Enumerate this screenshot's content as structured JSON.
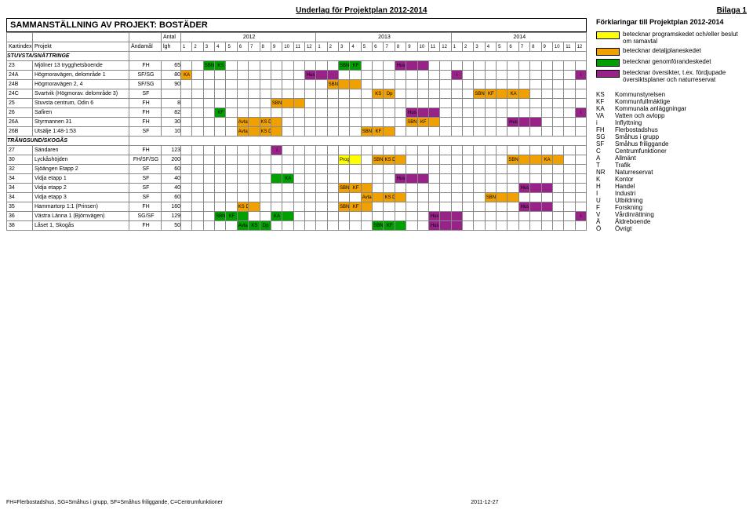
{
  "header": {
    "title_center": "Underlag för Projektplan 2012-2014",
    "title_right": "Bilaga 1"
  },
  "table": {
    "title": "SAMMANSTÄLLNING AV PROJEKT: BOSTÄDER",
    "antal_label": "Antal",
    "years": [
      "2012",
      "2013",
      "2014"
    ],
    "col_headers": [
      "Kartindex",
      "Projekt",
      "Ändamål",
      "lgh"
    ],
    "months": [
      "1",
      "2",
      "3",
      "4",
      "5",
      "6",
      "7",
      "8",
      "9",
      "10",
      "11",
      "12"
    ],
    "sections": [
      {
        "name": "STUVSTA/SNÄTTRINGE"
      },
      {
        "name": "TRÅNGSUND/SKOGÅS"
      }
    ],
    "rows": [
      {
        "s": 0,
        "idx": "23",
        "proj": "Mjölner 13 trygghetsboende",
        "and": "FH",
        "lgh": "65",
        "bars": [
          {
            "from": 2,
            "to": 4,
            "color": "#00a000",
            "labels": [
              "SBN",
              "KS"
            ]
          },
          {
            "from": 14,
            "to": 16,
            "color": "#00a000",
            "labels": [
              "SBN",
              "KF"
            ]
          },
          {
            "from": 19,
            "to": 22,
            "color": "#992288",
            "labels": [
              "Hus"
            ]
          }
        ]
      },
      {
        "s": 0,
        "idx": "24A",
        "proj": "Högmoravägen, delområde 1",
        "and": "SF/SG",
        "lgh": "80",
        "bars": [
          {
            "from": 0,
            "to": 1,
            "color": "#f0a000",
            "labels": [
              "KA"
            ]
          },
          {
            "from": 11,
            "to": 14,
            "color": "#992288",
            "labels": [
              "Hus"
            ]
          },
          {
            "from": 24,
            "to": 25,
            "color": "#992288",
            "labels": [
              "i"
            ]
          },
          {
            "from": 35,
            "to": 36,
            "color": "#992288",
            "labels": [
              "i"
            ]
          }
        ]
      },
      {
        "s": 0,
        "idx": "24B",
        "proj": "Högmoravägen 2, 4",
        "and": "SF/SG",
        "lgh": "90",
        "bars": [
          {
            "from": 13,
            "to": 16,
            "color": "#f0a000",
            "labels": [
              "SBN KF"
            ]
          }
        ]
      },
      {
        "s": 0,
        "idx": "24C",
        "proj": "Svartvik (Högmorav. delområde 3)",
        "and": "SF",
        "lgh": "",
        "bars": [
          {
            "from": 17,
            "to": 19,
            "color": "#f0a000",
            "labels": [
              "KS",
              "Dp"
            ]
          },
          {
            "from": 26,
            "to": 29,
            "color": "#f0a000",
            "labels": [
              "SBN",
              "KF"
            ]
          },
          {
            "from": 29,
            "to": 31,
            "color": "#f0a000",
            "labels": [
              "KA"
            ]
          }
        ]
      },
      {
        "s": 0,
        "idx": "25",
        "proj": "Stuvsta centrum, Odin 6",
        "and": "FH",
        "lgh": "8",
        "bars": [
          {
            "from": 8,
            "to": 11,
            "color": "#f0a000",
            "labels": [
              "SBN KF"
            ]
          }
        ]
      },
      {
        "s": 0,
        "idx": "26",
        "proj": "Safiren",
        "and": "FH",
        "lgh": "82",
        "bars": [
          {
            "from": 3,
            "to": 4,
            "color": "#00a000",
            "labels": [
              "KF"
            ]
          },
          {
            "from": 20,
            "to": 23,
            "color": "#992288",
            "labels": [
              "Hus"
            ]
          },
          {
            "from": 35,
            "to": 36,
            "color": "#992288",
            "labels": [
              "i"
            ]
          }
        ]
      },
      {
        "s": 0,
        "idx": "26A",
        "proj": "Styrmannen 31",
        "and": "FH",
        "lgh": "30",
        "bars": [
          {
            "from": 5,
            "to": 9,
            "color": "#f0a000",
            "labels": [
              "Avtal",
              "KS Dp"
            ]
          },
          {
            "from": 20,
            "to": 23,
            "color": "#f0a000",
            "labels": [
              "SBN",
              "KF"
            ]
          },
          {
            "from": 29,
            "to": 32,
            "color": "#992288",
            "labels": [
              "Hus"
            ]
          }
        ]
      },
      {
        "s": 0,
        "idx": "26B",
        "proj": "Utsälje 1:48-1:53",
        "and": "SF",
        "lgh": "10",
        "bars": [
          {
            "from": 5,
            "to": 9,
            "color": "#f0a000",
            "labels": [
              "Avtal",
              "KS Dp"
            ]
          },
          {
            "from": 16,
            "to": 19,
            "color": "#f0a000",
            "labels": [
              "SBN",
              "KF"
            ]
          }
        ]
      },
      {
        "s": 1,
        "idx": "27",
        "proj": "Sändaren",
        "and": "FH",
        "lgh": "123",
        "bars": [
          {
            "from": 8,
            "to": 9,
            "color": "#992288",
            "labels": [
              "i"
            ]
          }
        ]
      },
      {
        "s": 1,
        "idx": "30",
        "proj": "Lyckåshöjden",
        "and": "FH/SF/SG",
        "lgh": "200",
        "bars": [
          {
            "from": 14,
            "to": 16,
            "color": "#ffff00",
            "labels": [
              "Program"
            ]
          },
          {
            "from": 17,
            "to": 20,
            "color": "#f0a000",
            "labels": [
              "SBN",
              "KS Dp"
            ]
          },
          {
            "from": 29,
            "to": 32,
            "color": "#f0a000",
            "labels": [
              "SBN KF"
            ]
          },
          {
            "from": 32,
            "to": 34,
            "color": "#f0a000",
            "labels": [
              "KA"
            ]
          }
        ]
      },
      {
        "s": 1,
        "idx": "32",
        "proj": "Sjöängen Etapp 2",
        "and": "SF",
        "lgh": "60",
        "bars": []
      },
      {
        "s": 1,
        "idx": "34",
        "proj": "Vidja  etapp 1",
        "and": "SF",
        "lgh": "40",
        "bars": [
          {
            "from": 8,
            "to": 10,
            "color": "#00a000",
            "labels": [
              "",
              "KA"
            ]
          },
          {
            "from": 19,
            "to": 22,
            "color": "#992288",
            "labels": [
              "Hus"
            ]
          }
        ]
      },
      {
        "s": 1,
        "idx": "34",
        "proj": "Vidja  etapp 2",
        "and": "SF",
        "lgh": "40",
        "bars": [
          {
            "from": 14,
            "to": 17,
            "color": "#f0a000",
            "labels": [
              "SBN",
              "KF"
            ]
          },
          {
            "from": 30,
            "to": 33,
            "color": "#992288",
            "labels": [
              "Hus"
            ]
          }
        ]
      },
      {
        "s": 1,
        "idx": "34",
        "proj": "Vidja  etapp 3",
        "and": "SF",
        "lgh": "60",
        "bars": [
          {
            "from": 16,
            "to": 20,
            "color": "#f0a000",
            "labels": [
              "Avtal",
              "KS Dp"
            ]
          },
          {
            "from": 27,
            "to": 30,
            "color": "#f0a000",
            "labels": [
              "SBN KF"
            ]
          }
        ]
      },
      {
        "s": 1,
        "idx": "35",
        "proj": "Hammartorp 1:1 (Prinsen)",
        "and": "FH",
        "lgh": "160",
        "bars": [
          {
            "from": 5,
            "to": 7,
            "color": "#f0a000",
            "labels": [
              "KS Dp"
            ]
          },
          {
            "from": 14,
            "to": 17,
            "color": "#f0a000",
            "labels": [
              "SBN",
              "KF"
            ]
          },
          {
            "from": 30,
            "to": 33,
            "color": "#992288",
            "labels": [
              "Hus"
            ]
          }
        ]
      },
      {
        "s": 1,
        "idx": "36",
        "proj": "Västra Länna 1 (Björnvägen)",
        "and": "SG/SF",
        "lgh": "129",
        "bars": [
          {
            "from": 3,
            "to": 6,
            "color": "#00a000",
            "labels": [
              "SBN",
              "KF"
            ]
          },
          {
            "from": 8,
            "to": 10,
            "color": "#00a000",
            "labels": [
              "KA"
            ]
          },
          {
            "from": 22,
            "to": 25,
            "color": "#992288",
            "labels": [
              "Hus"
            ]
          },
          {
            "from": 35,
            "to": 36,
            "color": "#992288",
            "labels": [
              "i"
            ]
          }
        ]
      },
      {
        "s": 1,
        "idx": "38",
        "proj": "Låset 1, Skogås",
        "and": "FH",
        "lgh": "50",
        "bars": [
          {
            "from": 5,
            "to": 8,
            "color": "#00a000",
            "labels": [
              "Avtal",
              "KS",
              "Dp"
            ]
          },
          {
            "from": 17,
            "to": 20,
            "color": "#00a000",
            "labels": [
              "SBN",
              "KF"
            ]
          },
          {
            "from": 22,
            "to": 25,
            "color": "#992288",
            "labels": [
              "Hus"
            ]
          }
        ]
      }
    ]
  },
  "legend": {
    "title": "Förklaringar till Projektplan 2012-2014",
    "items": [
      {
        "color": "#ffff00",
        "text": "betecknar programskedet och/eller beslut om ramavtal"
      },
      {
        "color": "#f0a000",
        "text": "betecknar detaljplaneskedet"
      },
      {
        "color": "#00a000",
        "text": "betecknar genomförandeskedet"
      },
      {
        "color": "#992288",
        "text": "betecknar översikter, t.ex. fördjupade översiktsplaner och naturreservat"
      }
    ],
    "abbrs": [
      {
        "k": "KS",
        "v": "Kommunstyrelsen"
      },
      {
        "k": "KF",
        "v": "Kommunfullmäktige"
      },
      {
        "k": "KA",
        "v": "Kommunala anläggningar"
      },
      {
        "k": "VA",
        "v": "Vatten och avlopp"
      },
      {
        "k": "i",
        "v": "Inflyttning"
      },
      {
        "k": "",
        "v": ""
      },
      {
        "k": "FH",
        "v": "Flerbostadshus"
      },
      {
        "k": "SG",
        "v": "Småhus i grupp"
      },
      {
        "k": "SF",
        "v": "Småhus friliggande"
      },
      {
        "k": "C",
        "v": "Centrumfunktioner"
      },
      {
        "k": "A",
        "v": "Allmänt"
      },
      {
        "k": "T",
        "v": "Trafik"
      },
      {
        "k": "NR",
        "v": "Naturreservat"
      },
      {
        "k": "K",
        "v": "Kontor"
      },
      {
        "k": "H",
        "v": "Handel"
      },
      {
        "k": "I",
        "v": "Industri"
      },
      {
        "k": "U",
        "v": "Utbildning"
      },
      {
        "k": "F",
        "v": "Forskning"
      },
      {
        "k": "V",
        "v": "Vårdinrättning"
      },
      {
        "k": "Ä",
        "v": "Äldreboende"
      },
      {
        "k": "Ö",
        "v": "Övrigt"
      }
    ]
  },
  "footer": {
    "left": "FH=Flerbostadshus, SG=Småhus i grupp, SF=Småhus friliggande, C=Centrumfunktioner",
    "center": "2011-12-27"
  }
}
